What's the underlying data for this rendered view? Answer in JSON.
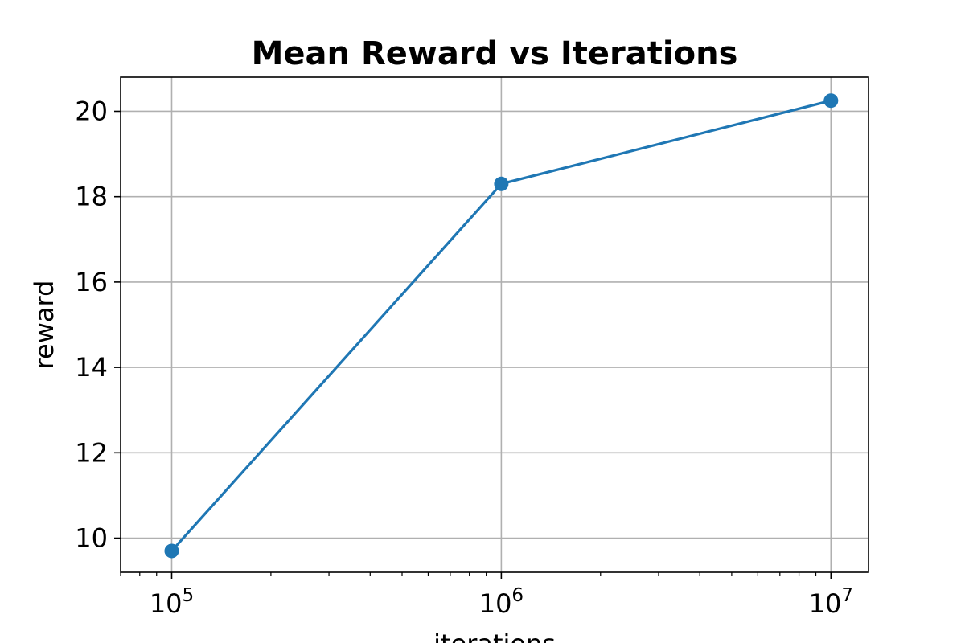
{
  "chart_data": {
    "type": "line",
    "title": "Mean Reward vs Iterations",
    "xlabel": "iterations",
    "ylabel": "reward",
    "x_scale": "log",
    "xlim": [
      70000,
      13000000
    ],
    "ylim": [
      9.2,
      20.8
    ],
    "x_ticks": [
      {
        "value": 100000,
        "base": "10",
        "exp": "5"
      },
      {
        "value": 1000000,
        "base": "10",
        "exp": "6"
      },
      {
        "value": 10000000,
        "base": "10",
        "exp": "7"
      }
    ],
    "y_ticks": [
      10,
      12,
      14,
      16,
      18,
      20
    ],
    "grid": true,
    "series": [
      {
        "color": "#1f77b4",
        "marker": "circle",
        "x": [
          100000,
          1000000,
          10000000
        ],
        "y": [
          9.7,
          18.3,
          20.25
        ]
      }
    ]
  }
}
